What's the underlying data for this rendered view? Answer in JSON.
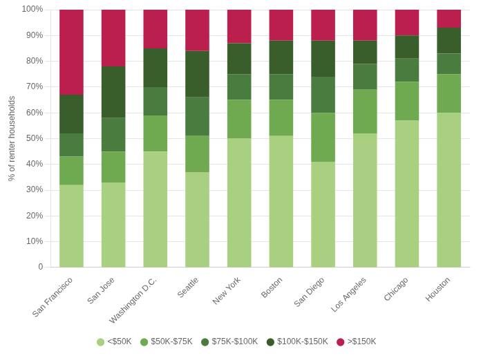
{
  "chart_data": {
    "type": "bar",
    "stacked": true,
    "ylabel": "% of renter households",
    "categories": [
      "San Francisco",
      "San Jose",
      "Washington D.C.",
      "Seattle",
      "New York",
      "Boston",
      "San Diego",
      "Los Angeles",
      "Chicago",
      "Houston"
    ],
    "series": [
      {
        "name": "<$50K",
        "color": "#a8d080",
        "values": [
          32,
          33,
          45,
          37,
          50,
          51,
          41,
          52,
          57,
          60
        ]
      },
      {
        "name": "$50K-$75K",
        "color": "#6faa50",
        "values": [
          11,
          12,
          14,
          14,
          15,
          14,
          19,
          17,
          15,
          15
        ]
      },
      {
        "name": "$75K-$100K",
        "color": "#4a7c3f",
        "values": [
          9,
          13,
          11,
          15,
          10,
          10,
          14,
          10,
          9,
          8
        ]
      },
      {
        "name": "$100K-$150K",
        "color": "#3a5e2b",
        "values": [
          15,
          20,
          15,
          18,
          12,
          13,
          14,
          9,
          9,
          10
        ]
      },
      {
        "name": ">$150K",
        "color": "#bb1f4e",
        "values": [
          33,
          22,
          15,
          16,
          13,
          12,
          12,
          12,
          10,
          7
        ]
      }
    ],
    "ylim": [
      0,
      100
    ],
    "yticks": [
      0,
      {
        "value": 10,
        "label": "10%"
      },
      {
        "value": 20,
        "label": "20%"
      },
      {
        "value": 30,
        "label": "30%"
      },
      {
        "value": 40,
        "label": "40%"
      },
      {
        "value": 50,
        "label": "50%"
      },
      {
        "value": 60,
        "label": "60%"
      },
      {
        "value": 70,
        "label": "70%"
      },
      {
        "value": 80,
        "label": "80%"
      },
      {
        "value": 90,
        "label": "90%"
      },
      {
        "value": 100,
        "label": "100%"
      }
    ],
    "grid": "y",
    "legend": "bottom"
  }
}
